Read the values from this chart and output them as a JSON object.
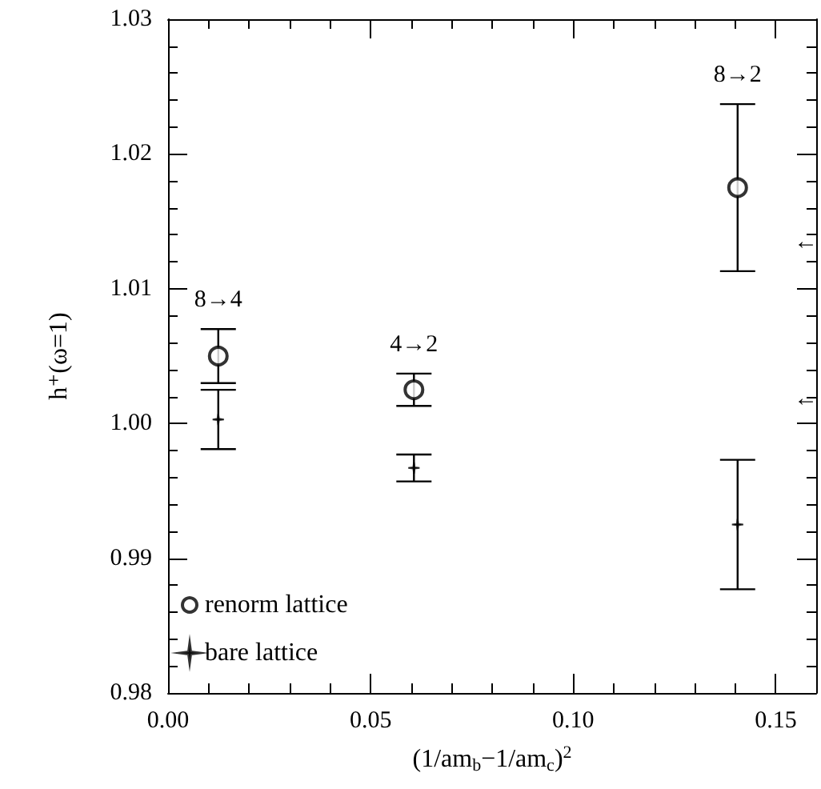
{
  "chart_data": {
    "type": "scatter",
    "xlabel": "(1/am$_{b}$−1/am$_{c}$)$^{2}$",
    "ylabel": "h⁺(ω=1)",
    "x": [
      0.0124,
      0.0607,
      0.1406
    ],
    "series": [
      {
        "name": "renorm lattice",
        "color": "#000000",
        "marker": "circle",
        "values": [
          1.005,
          1.0025,
          1.0175
        ],
        "errors": [
          0.002,
          0.0012,
          0.0062
        ]
      },
      {
        "name": "bare lattice",
        "color": "#000000",
        "marker": "cross",
        "values": [
          1.0003,
          0.9967,
          0.9925
        ],
        "errors": [
          0.0022,
          0.001,
          0.0048
        ]
      }
    ],
    "xlim": [
      0,
      0.16
    ],
    "xticks": [
      {
        "value": 0,
        "label": "0.00"
      },
      0.05,
      {
        "value": 0.1,
        "label": "0.10"
      },
      0.15
    ],
    "ylim": [
      0.98,
      1.03
    ],
    "yticks": [
      0.98,
      0.99,
      {
        "value": 1,
        "label": "1.00"
      },
      1.01,
      1.02,
      1.03
    ],
    "annotations": [
      "8→4",
      "4→2",
      "8→2",
      "←",
      "←"
    ],
    "legend": "bottom left",
    "grid": false
  }
}
